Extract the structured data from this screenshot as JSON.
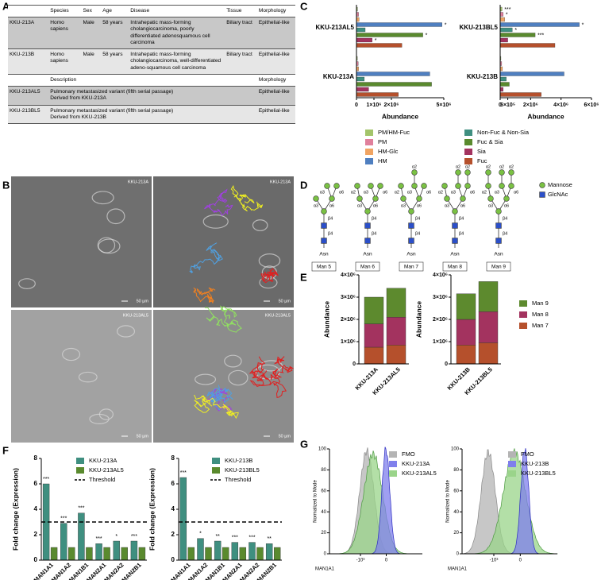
{
  "panel_labels": [
    "A",
    "B",
    "C",
    "D",
    "E",
    "F",
    "G"
  ],
  "table": {
    "header1": [
      null,
      "Species",
      "Sex",
      "Age",
      "Disease",
      "Tissue",
      "Morphology"
    ],
    "rows1": [
      [
        "KKU-213A",
        "Homo sapiens",
        "Male",
        "58 years",
        "Intrahepatic mass-forming cholangiocarcinoma, poorly differentiated adenosquamous cell carcinoma",
        "Biliary tract",
        "Epithelial-like"
      ],
      [
        "KKU-213B",
        "Homo sapiens",
        "Male",
        "58 years",
        "Intrahepatic mass-forming cholangiocarcinoma, well-differentiated adeno-squamous cell carcinoma",
        "Biliary tract",
        "Epithelial-like"
      ]
    ],
    "header2": [
      null,
      "Description",
      "Morphology"
    ],
    "rows2": [
      [
        "KKU-213AL5",
        [
          "Pulmonary metastasized variant (fifth serial passage)",
          "Derived from KKU-213A"
        ],
        "Epithelial-like"
      ],
      [
        "KKU-213BL5",
        [
          "Pulmonary metastasized variant (fifth serial passage)",
          "Derived from KKU-213B"
        ],
        "Epithelial-like"
      ]
    ]
  },
  "images": {
    "labels": [
      "KKU-213A",
      "KKU-213A",
      "KKU-213AL5",
      "KKU-213AL5"
    ],
    "scale_bar": "50 µm"
  },
  "glycans": {
    "names": [
      "Man 5",
      "Man 6",
      "Man 7",
      "Man 8",
      "Man 9"
    ],
    "asn": "Asn",
    "linkages": {
      "a2": "α2",
      "a3": "α3",
      "a6": "α6",
      "b4": "β4"
    },
    "legend": [
      "Mannose",
      "GlcNAc"
    ]
  },
  "chart_data": [
    {
      "type": "hbar",
      "categories": [
        "KKU-213AL5",
        "KKU-213A"
      ],
      "xlabel": "Abundance",
      "xlim": [
        0,
        5000000
      ],
      "xticks": [
        0,
        {
          "value": 1000000,
          "label": "1×10⁶"
        },
        {
          "value": 2000000,
          "label": "2×10⁶"
        },
        {
          "value": 5000000,
          "label": "5×10⁶"
        }
      ],
      "legend": true,
      "series": [
        {
          "name": "PM/HM-Fuc",
          "color": "#a3c46a",
          "values": [
            60000,
            50000
          ]
        },
        {
          "name": "PM",
          "color": "#e0809c",
          "values": [
            120000,
            100000
          ]
        },
        {
          "name": "HM-Glc",
          "color": "#f0a463",
          "values": [
            150000,
            120000
          ]
        },
        {
          "name": "HM",
          "color": "#4f7fc0",
          "values": [
            4900000,
            4200000
          ],
          "significance": [
            "*",
            null
          ]
        },
        {
          "name": "Non-Fuc & Non-Sia",
          "color": "#3f8f80",
          "values": [
            500000,
            450000
          ]
        },
        {
          "name": "Fuc & Sia",
          "color": "#5a8a2e",
          "values": [
            3800000,
            4300000
          ],
          "significance": [
            "*",
            null
          ]
        },
        {
          "name": "Sia",
          "color": "#a3335f",
          "values": [
            900000,
            700000
          ],
          "significance": [
            "*",
            null
          ]
        },
        {
          "name": "Fuc",
          "color": "#b5502c",
          "values": [
            2600000,
            2400000
          ]
        }
      ]
    },
    {
      "type": "hbar",
      "categories": [
        "KKU-213BL5",
        "KKU-213B"
      ],
      "xlabel": "Abundance",
      "xlim": [
        0,
        6000000
      ],
      "xticks": [
        0,
        {
          "value": 500000,
          "label": "5×10⁵"
        },
        {
          "value": 2000000,
          "label": "2×10⁶"
        },
        {
          "value": 4000000,
          "label": "4×10⁶"
        },
        {
          "value": 6000000,
          "label": "6×10⁶"
        }
      ],
      "legend": false,
      "series": [
        {
          "name": "PM/HM-Fuc",
          "color": "#a3c46a",
          "values": [
            120000,
            50000
          ],
          "significance": [
            "***",
            null
          ]
        },
        {
          "name": "PM",
          "color": "#e0809c",
          "values": [
            200000,
            100000
          ],
          "significance": [
            "*",
            null
          ]
        },
        {
          "name": "HM-Glc",
          "color": "#f0a463",
          "values": [
            300000,
            150000
          ]
        },
        {
          "name": "HM",
          "color": "#4f7fc0",
          "values": [
            5200000,
            4200000
          ],
          "significance": [
            "*",
            null
          ]
        },
        {
          "name": "Non-Fuc & Non-Sia",
          "color": "#3f8f80",
          "values": [
            800000,
            400000
          ],
          "significance": [
            "*",
            null
          ]
        },
        {
          "name": "Fuc & Sia",
          "color": "#5a8a2e",
          "values": [
            2300000,
            600000
          ],
          "significance": [
            "***",
            null
          ]
        },
        {
          "name": "Sia",
          "color": "#a3335f",
          "values": [
            500000,
            200000
          ]
        },
        {
          "name": "Fuc",
          "color": "#b5502c",
          "values": [
            3600000,
            2700000
          ]
        }
      ]
    },
    {
      "type": "stacked_bar",
      "categories": [
        "KKU-213A",
        "KKU-213AL5"
      ],
      "ylabel": "Abundance",
      "ylim": [
        0,
        4000000
      ],
      "yticks": [
        0,
        {
          "value": 1000000,
          "label": "1×10⁶"
        },
        {
          "value": 2000000,
          "label": "2×10⁶"
        },
        {
          "value": 3000000,
          "label": "3×10⁶"
        },
        {
          "value": 4000000,
          "label": "4×10⁶"
        }
      ],
      "legend": false,
      "series": [
        {
          "name": "Man 7",
          "color": "#b5502c",
          "values": [
            750000,
            850000
          ]
        },
        {
          "name": "Man 8",
          "color": "#a3335f",
          "values": [
            1050000,
            1250000
          ]
        },
        {
          "name": "Man 9",
          "color": "#5d8a2e",
          "values": [
            1200000,
            1300000
          ]
        }
      ]
    },
    {
      "type": "stacked_bar",
      "categories": [
        "KKU-213B",
        "KKU-213BL5"
      ],
      "ylabel": "Abundance",
      "ylim": [
        0,
        4000000
      ],
      "yticks": [
        0,
        {
          "value": 1000000,
          "label": "1×10⁶"
        },
        {
          "value": 2000000,
          "label": "2×10⁶"
        },
        {
          "value": 3000000,
          "label": "3×10⁶"
        },
        {
          "value": 4000000,
          "label": "4×10⁶"
        }
      ],
      "legend": true,
      "series": [
        {
          "name": "Man 7",
          "color": "#b5502c",
          "values": [
            850000,
            950000
          ]
        },
        {
          "name": "Man 8",
          "color": "#a3335f",
          "values": [
            1150000,
            1400000
          ]
        },
        {
          "name": "Man 9",
          "color": "#5d8a2e",
          "values": [
            1150000,
            1350000
          ]
        }
      ]
    },
    {
      "type": "bar",
      "categories": [
        "MAN1A1",
        "MAN1A2",
        "MAN1B1",
        "MAN2A1",
        "MAN2A2",
        "MAN2B1"
      ],
      "ylabel": "Fold change (Expression)",
      "ylim": [
        0,
        8
      ],
      "yticks": [
        0,
        2,
        4,
        6,
        8
      ],
      "threshold": 3,
      "threshold_label": "Threshold",
      "series": [
        {
          "name": "KKU-213A",
          "color": "#3f8f80",
          "values": [
            6.0,
            2.9,
            3.7,
            1.3,
            1.5,
            1.5
          ],
          "significance": [
            "***",
            "***",
            "***",
            "***",
            "*",
            "***"
          ]
        },
        {
          "name": "KKU-213AL5",
          "color": "#5a8a2e",
          "values": [
            1.0,
            1.0,
            1.0,
            1.0,
            1.0,
            1.0
          ]
        }
      ]
    },
    {
      "type": "bar",
      "categories": [
        "MAN1A1",
        "MAN1A2",
        "MAN1B1",
        "MAN2A1",
        "MAN2A2",
        "MAN2B1"
      ],
      "ylabel": "Fold change (Expression)",
      "ylim": [
        0,
        8
      ],
      "yticks": [
        0,
        2,
        4,
        6,
        8
      ],
      "threshold": 3,
      "threshold_label": "Threshold",
      "series": [
        {
          "name": "KKU-213B",
          "color": "#3f8f80",
          "values": [
            6.5,
            1.7,
            1.5,
            1.4,
            1.4,
            1.3
          ],
          "significance": [
            "***",
            "*",
            "**",
            "***",
            "***",
            "**"
          ]
        },
        {
          "name": "KKU-213BL5",
          "color": "#5a8a2e",
          "values": [
            1.0,
            1.0,
            1.0,
            1.0,
            1.0,
            1.0
          ]
        }
      ]
    },
    {
      "type": "flow_histogram",
      "xlabel": "MAN1A1",
      "ylabel": "Normalized to Mode",
      "xlim": [
        -2200,
        1400
      ],
      "xticks": [
        {
          "value": -1000,
          "label": "-10³"
        },
        0
      ],
      "ylim": [
        0,
        100
      ],
      "yticks": [
        0,
        20,
        40,
        60,
        80,
        100
      ],
      "series": [
        {
          "name": "FMO",
          "color": "#b4b4b4"
        },
        {
          "name": "KKU-213A",
          "color": "#7f7fec"
        },
        {
          "name": "KKU-213AL5",
          "color": "#9ad48a"
        }
      ]
    },
    {
      "type": "flow_histogram",
      "xlabel": "MAN1A1",
      "ylabel": "Normalized to Mode",
      "xlim": [
        -2200,
        1400
      ],
      "xticks": [
        {
          "value": -1000,
          "label": "-10³"
        },
        0
      ],
      "ylim": [
        0,
        100
      ],
      "yticks": [
        0,
        20,
        40,
        60,
        80,
        100
      ],
      "series": [
        {
          "name": "FMO",
          "color": "#b4b4b4"
        },
        {
          "name": "KKU-213B",
          "color": "#7f7fec"
        },
        {
          "name": "KKU-213BL5",
          "color": "#9ad48a"
        }
      ]
    }
  ]
}
